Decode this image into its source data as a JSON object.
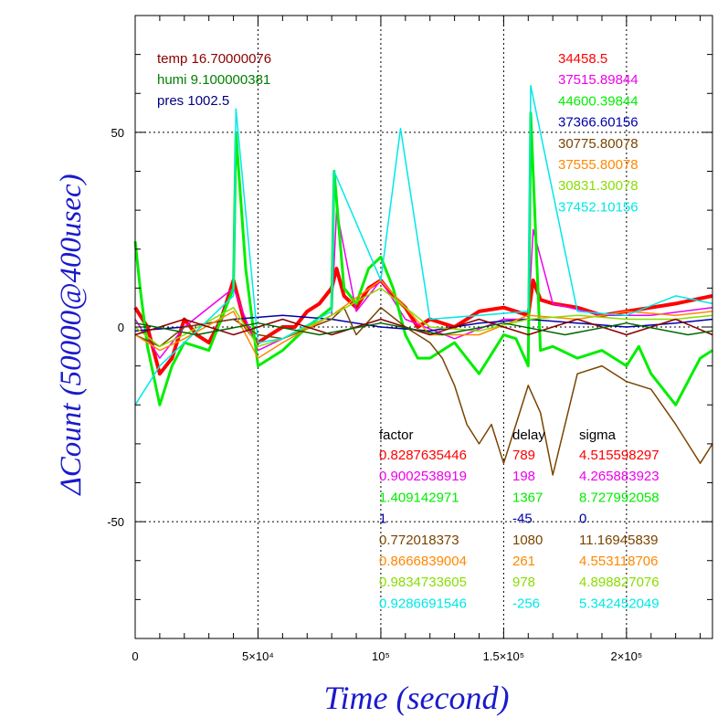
{
  "chart_data": {
    "type": "line",
    "xlabel": "Time (second)",
    "ylabel": "ΔCount (50000@400usec)",
    "xlim": [
      0,
      235000
    ],
    "ylim": [
      -80,
      80
    ],
    "grid": true,
    "x_ticks": [
      {
        "value": 0,
        "label": "0"
      },
      {
        "value": 50000,
        "label": "5×10⁴"
      },
      {
        "value": 100000,
        "label": "10⁵"
      },
      {
        "value": 150000,
        "label": "1.5×10⁵"
      },
      {
        "value": 200000,
        "label": "2×10⁵"
      }
    ],
    "y_ticks": [
      {
        "value": 50,
        "label": "50"
      },
      {
        "value": 0,
        "label": "0"
      },
      {
        "value": -50,
        "label": "-50"
      }
    ],
    "environment": [
      {
        "text": "temp 16.70000076",
        "color": "#8b0000"
      },
      {
        "text": "humi 9.100000381",
        "color": "#008000"
      },
      {
        "text": "pres 1002.5",
        "color": "#000080"
      }
    ],
    "table_headers": [
      "factor",
      "delay",
      "sigma"
    ],
    "series": [
      {
        "mean": "34458.5",
        "factor": "0.8287635446",
        "delay": "789",
        "sigma": "4.515598297",
        "color": "#ff0000",
        "x": [
          0,
          5000,
          10000,
          15000,
          20000,
          25000,
          30000,
          35000,
          40000,
          45000,
          50000,
          55000,
          60000,
          65000,
          70000,
          75000,
          80000,
          82000,
          85000,
          90000,
          95000,
          100000,
          105000,
          110000,
          115000,
          120000,
          130000,
          140000,
          150000,
          160000,
          162000,
          165000,
          170000,
          180000,
          190000,
          200000,
          210000,
          220000,
          235000
        ],
        "y": [
          5,
          0,
          -12,
          -8,
          2,
          -2,
          -4,
          2,
          12,
          0,
          -4,
          -2,
          0,
          0,
          4,
          6,
          10,
          15,
          8,
          5,
          10,
          12,
          8,
          5,
          0,
          2,
          0,
          4,
          5,
          3,
          12,
          7,
          6,
          5,
          3,
          4,
          5,
          6,
          8
        ]
      },
      {
        "mean": "37515.89844",
        "factor": "0.9002538919",
        "delay": "198",
        "sigma": "4.265883923",
        "color": "#ee00ee",
        "x": [
          0,
          10000,
          20000,
          40000,
          50000,
          60000,
          80000,
          82000,
          90000,
          100000,
          110000,
          130000,
          150000,
          160000,
          162000,
          170000,
          190000,
          210000,
          235000
        ],
        "y": [
          2,
          -8,
          0,
          10,
          -6,
          -3,
          3,
          30,
          4,
          12,
          2,
          -3,
          2,
          2,
          25,
          6,
          3,
          3,
          5
        ]
      },
      {
        "mean": "44600.39844",
        "factor": "1.409142971",
        "delay": "1367",
        "sigma": "8.727992058",
        "color": "#00ee00",
        "x": [
          0,
          2000,
          5000,
          10000,
          15000,
          20000,
          30000,
          40000,
          41000,
          45000,
          50000,
          55000,
          60000,
          70000,
          80000,
          81000,
          85000,
          90000,
          95000,
          100000,
          105000,
          110000,
          115000,
          120000,
          130000,
          140000,
          150000,
          155000,
          160000,
          161000,
          165000,
          170000,
          180000,
          190000,
          200000,
          205000,
          210000,
          220000,
          230000,
          235000
        ],
        "y": [
          22,
          10,
          -5,
          -20,
          -10,
          -4,
          -6,
          10,
          50,
          15,
          -10,
          -8,
          -6,
          0,
          5,
          40,
          10,
          6,
          15,
          18,
          10,
          -2,
          -8,
          -8,
          -4,
          -12,
          -2,
          -3,
          -10,
          55,
          -6,
          -5,
          -8,
          -6,
          -10,
          -5,
          -12,
          -20,
          -8,
          -6
        ]
      },
      {
        "mean": "37366.60156",
        "factor": "1",
        "delay": "-45",
        "sigma": "0",
        "color": "#0000aa",
        "x": [
          0,
          20000,
          40000,
          60000,
          80000,
          100000,
          120000,
          140000,
          160000,
          180000,
          200000,
          220000,
          235000
        ],
        "y": [
          -1,
          0,
          2,
          3,
          2,
          0,
          -1,
          1,
          2,
          1,
          0,
          1,
          2
        ]
      },
      {
        "mean": "30775.80078",
        "factor": "0.772018373",
        "delay": "1080",
        "sigma": "11.16945839",
        "color": "#7a4400",
        "x": [
          0,
          10000,
          20000,
          40000,
          50000,
          60000,
          80000,
          85000,
          90000,
          100000,
          110000,
          120000,
          125000,
          130000,
          135000,
          140000,
          145000,
          150000,
          155000,
          160000,
          165000,
          170000,
          180000,
          190000,
          200000,
          210000,
          220000,
          230000,
          235000
        ],
        "y": [
          -2,
          -5,
          0,
          2,
          -2,
          -3,
          2,
          5,
          -2,
          5,
          0,
          -4,
          -8,
          -15,
          -25,
          -30,
          -25,
          -35,
          -25,
          -15,
          -22,
          -38,
          -12,
          -10,
          -14,
          -16,
          -25,
          -35,
          -30
        ]
      },
      {
        "mean": "37555.80078",
        "factor": "0.8666839004",
        "delay": "261",
        "sigma": "4.553118706",
        "color": "#ff8800",
        "x": [
          0,
          10000,
          20000,
          40000,
          50000,
          60000,
          80000,
          100000,
          120000,
          140000,
          160000,
          180000,
          200000,
          220000,
          235000
        ],
        "y": [
          -2,
          -6,
          -3,
          4,
          -8,
          -4,
          3,
          12,
          -2,
          -2,
          3,
          2,
          4,
          3,
          4
        ]
      },
      {
        "mean": "30831.30078",
        "factor": "0.9834733605",
        "delay": "978",
        "sigma": "4.898827076",
        "color": "#88dd00",
        "x": [
          0,
          10000,
          20000,
          40000,
          50000,
          60000,
          80000,
          100000,
          120000,
          140000,
          160000,
          180000,
          200000,
          220000,
          235000
        ],
        "y": [
          0,
          -5,
          -2,
          5,
          -5,
          -3,
          3,
          10,
          0,
          -1,
          2,
          3,
          2,
          2,
          3
        ]
      },
      {
        "mean": "37452.10156",
        "factor": "0.9286691546",
        "delay": "-256",
        "sigma": "5.342452049",
        "color": "#00e8e8",
        "x": [
          0,
          10000,
          20000,
          40000,
          41000,
          50000,
          60000,
          80000,
          81000,
          100000,
          108000,
          120000,
          140000,
          160000,
          161000,
          180000,
          200000,
          220000,
          235000
        ],
        "y": [
          -20,
          -10,
          -4,
          8,
          56,
          -4,
          -3,
          4,
          40,
          12,
          51,
          2,
          3,
          4,
          62,
          4,
          3,
          8,
          6
        ]
      },
      {
        "mean": "",
        "factor": "",
        "delay": "",
        "sigma": "",
        "color": "#8b0000",
        "x": [
          0,
          20000,
          40000,
          60000,
          80000,
          100000,
          120000,
          140000,
          160000,
          180000,
          200000,
          220000,
          235000
        ],
        "y": [
          -2,
          2,
          -2,
          2,
          -2,
          2,
          -2,
          2,
          -2,
          2,
          -2,
          2,
          -2
        ]
      },
      {
        "mean": "",
        "factor": "",
        "delay": "",
        "sigma": "",
        "color": "#006600",
        "x": [
          0,
          25000,
          50000,
          75000,
          100000,
          125000,
          150000,
          175000,
          200000,
          225000,
          235000
        ],
        "y": [
          1,
          -2,
          1,
          -2,
          1,
          -2,
          1,
          -2,
          1,
          -2,
          -1
        ]
      }
    ]
  }
}
